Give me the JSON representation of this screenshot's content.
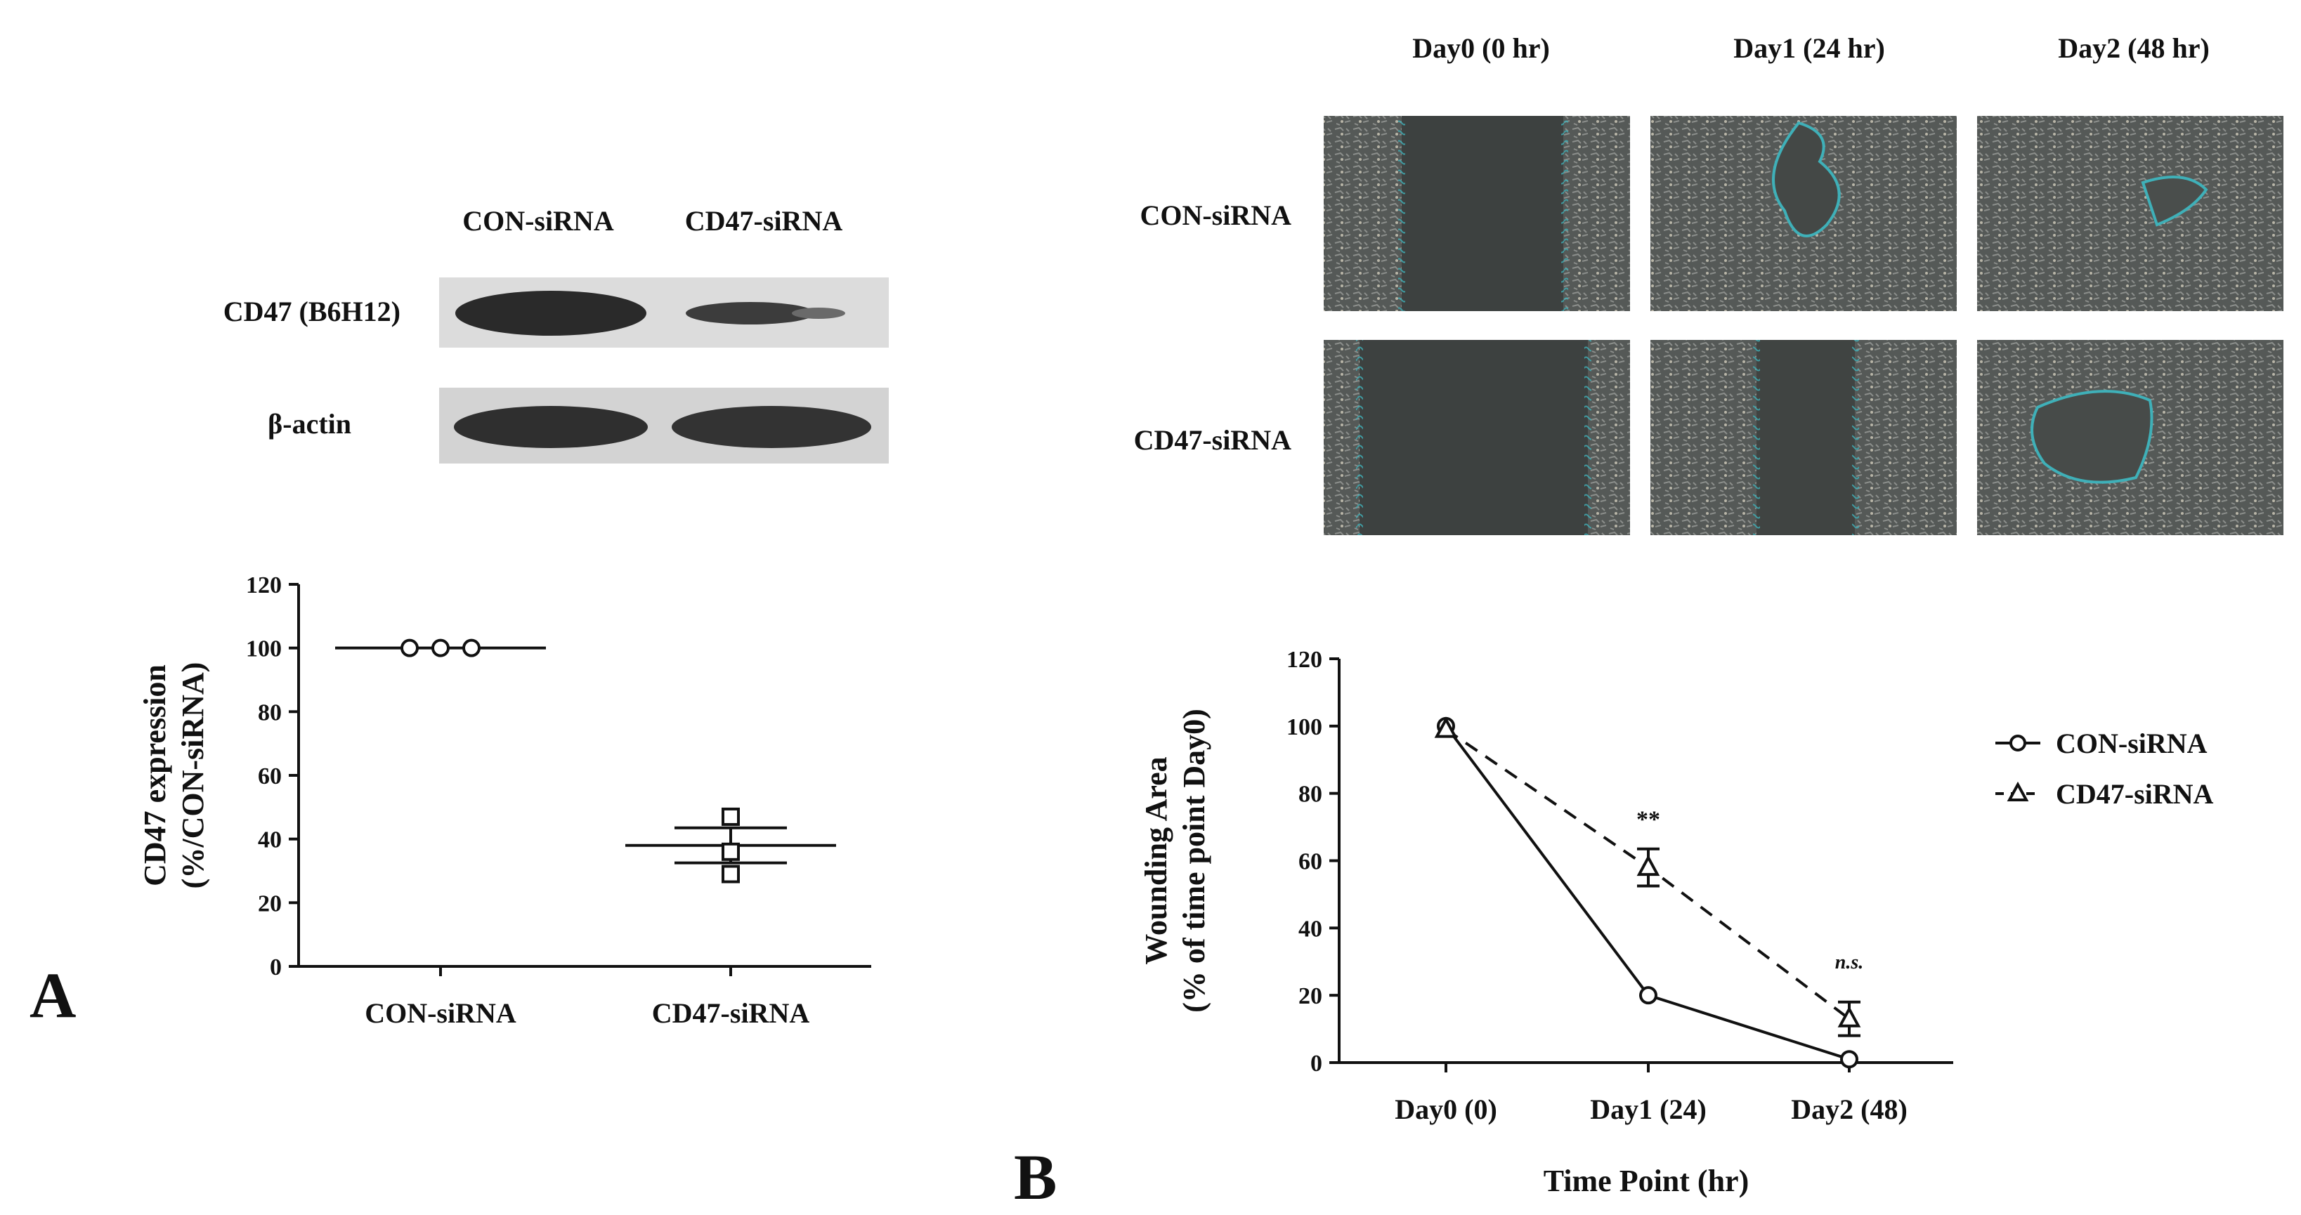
{
  "panel_a": {
    "letter": "A",
    "blot": {
      "lane_labels": [
        "CON-siRNA",
        "CD47-siRNA"
      ],
      "row_labels": [
        "CD47 (B6H12)",
        "β-actin"
      ]
    }
  },
  "panel_b": {
    "letter": "B",
    "day_headers": [
      "Day0 (0 hr)",
      "Day1 (24 hr)",
      "Day2 (48 hr)"
    ],
    "row_labels": [
      "CON-siRNA",
      "CD47-siRNA"
    ]
  },
  "chart_data": [
    {
      "type": "scatter",
      "title": "",
      "xlabel": "",
      "ylabel": "CD47 expression (%/CON-siRNA)",
      "ylabel_lines": [
        "CD47 expression",
        "(%/CON-siRNA)"
      ],
      "categories": [
        "CON-siRNA",
        "CD47-siRNA"
      ],
      "ylim": [
        0,
        120
      ],
      "yticks": [
        0,
        20,
        40,
        60,
        80,
        100,
        120
      ],
      "series": [
        {
          "category": "CON-siRNA",
          "marker": "circle",
          "points": [
            100,
            100,
            100
          ],
          "mean": 100,
          "sem": 0
        },
        {
          "category": "CD47-siRNA",
          "marker": "square",
          "points": [
            47,
            36,
            29
          ],
          "mean": 38,
          "sem": 5.5
        }
      ]
    },
    {
      "type": "line",
      "title": "",
      "xlabel": "Time Point (hr)",
      "ylabel": "Wounding Area (% of time point Day0)",
      "ylabel_lines": [
        "Wounding Area",
        "(% of time point Day0)"
      ],
      "categories": [
        "Day0 (0)",
        "Day1 (24)",
        "Day2 (48)"
      ],
      "ylim": [
        0,
        120
      ],
      "yticks": [
        0,
        20,
        40,
        60,
        80,
        100,
        120
      ],
      "legend_position": "right",
      "series": [
        {
          "name": "CON-siRNA",
          "marker": "circle",
          "line": "solid",
          "values": [
            100,
            20,
            1
          ],
          "errors": [
            0,
            0,
            0
          ]
        },
        {
          "name": "CD47-siRNA",
          "marker": "triangle",
          "line": "dashed",
          "values": [
            99,
            58,
            13
          ],
          "errors": [
            0,
            5.5,
            5
          ]
        }
      ],
      "annotations": [
        "**",
        "n.s."
      ]
    }
  ]
}
